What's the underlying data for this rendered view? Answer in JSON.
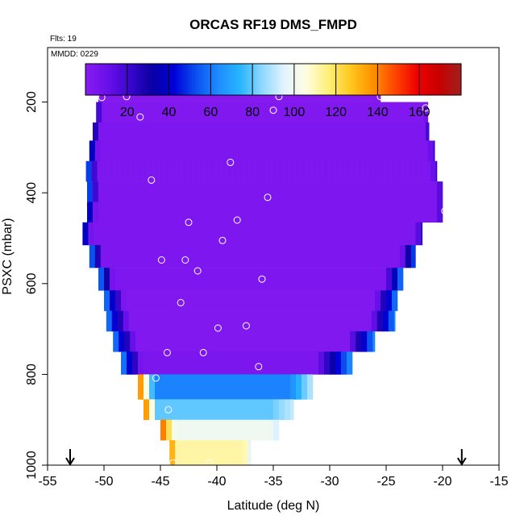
{
  "chart_data": {
    "type": "heatmap",
    "title": "ORCAS RF19 DMS_FMPD",
    "annotations": {
      "flights": "Flts: 19",
      "mmdd": "MMDD: 0229"
    },
    "xlabel": "Latitude (deg N)",
    "ylabel": "PSXC (mbar)",
    "xlim": [
      -55,
      -15
    ],
    "ylim": [
      1000,
      80
    ],
    "x_ticks": [
      -55,
      -50,
      -45,
      -40,
      -35,
      -30,
      -25,
      -20,
      -15
    ],
    "y_ticks": [
      200,
      400,
      600,
      800,
      1000
    ],
    "colorbar": {
      "range": [
        0,
        180
      ],
      "ticks": [
        20,
        40,
        60,
        80,
        100,
        120,
        140,
        160
      ],
      "stops": [
        "#8a1bf2",
        "#6a10ea",
        "#3a06cf",
        "#0a00a4",
        "#0000d8",
        "#0a50f0",
        "#1e8cff",
        "#28b4ff",
        "#8fd8ff",
        "#e2f4ff",
        "#fffde0",
        "#fff078",
        "#ffc81e",
        "#ff9100",
        "#ff4600",
        "#f00000",
        "#c80000",
        "#a02020"
      ]
    },
    "arrows_at_latitude": [
      -53,
      -18.3
    ],
    "rows": [
      {
        "p_top": 175,
        "p_bot": 200,
        "lat_min": -50.5,
        "lat_max": -25.5,
        "edge_left": 0.1,
        "edge_right": 0.1,
        "core": 2
      },
      {
        "p_top": 200,
        "p_bot": 245,
        "lat_min": -50.7,
        "lat_max": -21.3,
        "edge_left": 0.5,
        "edge_right": 0.3,
        "core": 3
      },
      {
        "p_top": 245,
        "p_bot": 285,
        "lat_min": -51.0,
        "lat_max": -21.2,
        "edge_left": 0.6,
        "edge_right": 0.5,
        "core": 4
      },
      {
        "p_top": 285,
        "p_bot": 330,
        "lat_min": -51.3,
        "lat_max": -20.7,
        "edge_left": 0.8,
        "edge_right": 0.5,
        "core": 4
      },
      {
        "p_top": 330,
        "p_bot": 375,
        "lat_min": -51.6,
        "lat_max": -20.5,
        "edge_left": 1.0,
        "edge_right": 0.5,
        "core": 4
      },
      {
        "p_top": 375,
        "p_bot": 420,
        "lat_min": -51.5,
        "lat_max": -20.0,
        "edge_left": 1.0,
        "edge_right": 0.5,
        "core": 4
      },
      {
        "p_top": 420,
        "p_bot": 465,
        "lat_min": -51.5,
        "lat_max": -20.0,
        "edge_left": 0.8,
        "edge_right": 0.5,
        "core": 4
      },
      {
        "p_top": 465,
        "p_bot": 515,
        "lat_min": -51.9,
        "lat_max": -21.8,
        "edge_left": 0.8,
        "edge_right": 0.6,
        "core": 4
      },
      {
        "p_top": 515,
        "p_bot": 565,
        "lat_min": -51.3,
        "lat_max": -22.4,
        "edge_left": 1.2,
        "edge_right": 1.3,
        "core": 4
      },
      {
        "p_top": 565,
        "p_bot": 615,
        "lat_min": -50.5,
        "lat_max": -23.5,
        "edge_left": 1.3,
        "edge_right": 1.6,
        "core": 4
      },
      {
        "p_top": 615,
        "p_bot": 660,
        "lat_min": -50.0,
        "lat_max": -24.0,
        "edge_left": 1.8,
        "edge_right": 2.0,
        "core": 3
      },
      {
        "p_top": 660,
        "p_bot": 705,
        "lat_min": -49.8,
        "lat_max": -24.2,
        "edge_left": 2.0,
        "edge_right": 2.2,
        "core": 3
      },
      {
        "p_top": 705,
        "p_bot": 750,
        "lat_min": -49.2,
        "lat_max": -26.0,
        "edge_left": 2.0,
        "edge_right": 2.4,
        "core": 3
      },
      {
        "p_top": 750,
        "p_bot": 800,
        "lat_min": -48.5,
        "lat_max": -28.0,
        "edge_left": 1.8,
        "edge_right": 3.2,
        "core": 5
      },
      {
        "p_top": 800,
        "p_bot": 855,
        "lat_min": -47.0,
        "lat_max": -31.5,
        "edge_left": 1.5,
        "edge_right": 2.0,
        "core": 62
      },
      {
        "p_top": 855,
        "p_bot": 900,
        "lat_min": -46.5,
        "lat_max": -33.2,
        "edge_left": 1.2,
        "edge_right": 2.0,
        "core": 80
      },
      {
        "p_top": 900,
        "p_bot": 945,
        "lat_min": -45.0,
        "lat_max": -34.5,
        "edge_left": 1.3,
        "edge_right": 0.8,
        "core": 100
      },
      {
        "p_top": 945,
        "p_bot": 1000,
        "lat_min": -44.2,
        "lat_max": -37.0,
        "edge_left": 0.5,
        "edge_right": 0.5,
        "core": 112
      }
    ],
    "circles": [
      {
        "lat": -50.2,
        "p": 190
      },
      {
        "lat": -48.0,
        "p": 188
      },
      {
        "lat": -34.5,
        "p": 188
      },
      {
        "lat": -25.5,
        "p": 188
      },
      {
        "lat": -46.8,
        "p": 233
      },
      {
        "lat": -35.0,
        "p": 218
      },
      {
        "lat": -21.5,
        "p": 213
      },
      {
        "lat": -38.8,
        "p": 333
      },
      {
        "lat": -52.0,
        "p": 365
      },
      {
        "lat": -45.8,
        "p": 372
      },
      {
        "lat": -35.5,
        "p": 410
      },
      {
        "lat": -19.8,
        "p": 440
      },
      {
        "lat": -42.5,
        "p": 465
      },
      {
        "lat": -38.2,
        "p": 460
      },
      {
        "lat": -52.3,
        "p": 482
      },
      {
        "lat": -39.5,
        "p": 505
      },
      {
        "lat": -44.9,
        "p": 548
      },
      {
        "lat": -42.8,
        "p": 548
      },
      {
        "lat": -41.7,
        "p": 572
      },
      {
        "lat": -36.0,
        "p": 590
      },
      {
        "lat": -43.2,
        "p": 642
      },
      {
        "lat": -39.9,
        "p": 698
      },
      {
        "lat": -37.4,
        "p": 693
      },
      {
        "lat": -44.4,
        "p": 752
      },
      {
        "lat": -41.2,
        "p": 752
      },
      {
        "lat": -36.3,
        "p": 783
      },
      {
        "lat": -45.4,
        "p": 808
      },
      {
        "lat": -44.3,
        "p": 878
      },
      {
        "lat": -43.9,
        "p": 995
      },
      {
        "lat": -40.7,
        "p": 995
      },
      {
        "lat": -36.7,
        "p": 992
      }
    ]
  }
}
